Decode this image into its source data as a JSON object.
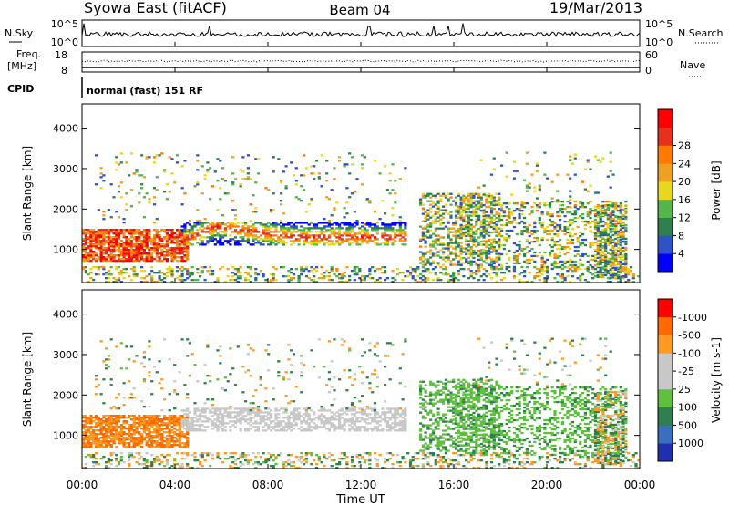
{
  "header": {
    "station": "Syowa East (fitACF)",
    "beam": "Beam 04",
    "date": "19/Mar/2013"
  },
  "status_panels": {
    "nsky_label": "N.Sky",
    "nsky_top": "10^5",
    "nsky_bottom": "10^0",
    "nsearch_label": "N.Search",
    "nsearch_top": "10^5",
    "nsearch_bottom": "10^0",
    "freq_label": "Freq.",
    "freq_unit": "[MHz]",
    "freq_top": "18",
    "freq_bottom": "8",
    "nave_label": "Nave",
    "nave_top": "60",
    "nave_bottom": "0",
    "cpid_label": "CPID",
    "cpid_value": "normal (fast) 151 RF"
  },
  "chart_data": [
    {
      "type": "heatmap",
      "name": "power",
      "ylabel": "Slant Range [km]",
      "yticks": [
        "1000",
        "2000",
        "3000",
        "4000"
      ],
      "ylim": [
        180,
        4600
      ],
      "colorbar_label": "Power [dB]",
      "colorbar_ticks": [
        "4",
        "8",
        "12",
        "16",
        "20",
        "24",
        "28"
      ],
      "colorbar_colors": [
        "#0000ff",
        "#2f52c8",
        "#2f7f4f",
        "#53b54a",
        "#e8d81c",
        "#f0a020",
        "#ff7a00",
        "#e8301e",
        "#ff0000"
      ]
    },
    {
      "type": "heatmap",
      "name": "velocity",
      "ylabel": "Slant Range [km]",
      "yticks": [
        "1000",
        "2000",
        "3000",
        "4000"
      ],
      "ylim": [
        180,
        4600
      ],
      "colorbar_label": "Velocity [m s-1]",
      "colorbar_ticks": [
        "1000",
        "500",
        "100",
        "25",
        "-25",
        "-100",
        "-500",
        "-1000"
      ],
      "colorbar_colors": [
        "#1f2fb0",
        "#3a6fc0",
        "#2f7f4f",
        "#5fc040",
        "#c8c8c8",
        "#c8c8c8",
        "#ff9a20",
        "#ff6a00",
        "#ff0000"
      ]
    }
  ],
  "x_axis": {
    "ticks": [
      "00:00",
      "04:00",
      "08:00",
      "12:00",
      "16:00",
      "20:00",
      "00:00"
    ],
    "label": "Time UT",
    "xlim_hours": [
      0,
      24
    ]
  }
}
